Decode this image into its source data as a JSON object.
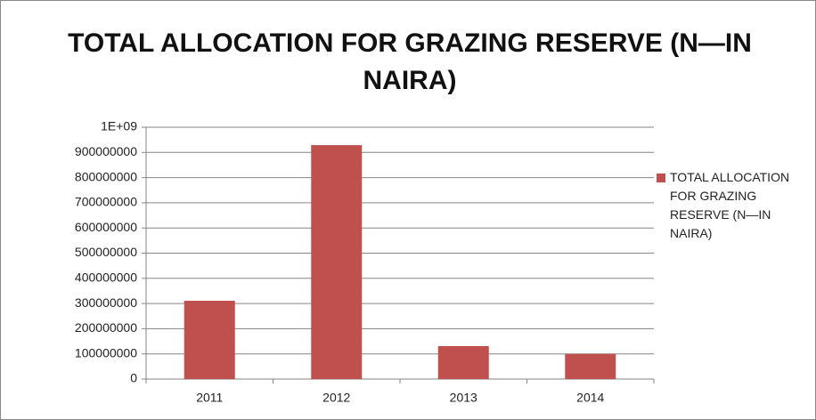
{
  "chart_data": {
    "type": "bar",
    "title": "TOTAL ALLOCATION FOR GRAZING RESERVE (N—IN NAIRA)",
    "categories": [
      "2011",
      "2012",
      "2013",
      "2014"
    ],
    "series": [
      {
        "name": "TOTAL ALLOCATION FOR GRAZING RESERVE (N—IN NAIRA)",
        "color": "#c0504d",
        "values": [
          311000000,
          929000000,
          131000000,
          100000000
        ]
      }
    ],
    "ylim": [
      0,
      1000000000
    ],
    "yticks": [
      0,
      100000000,
      200000000,
      300000000,
      400000000,
      500000000,
      600000000,
      700000000,
      800000000,
      900000000,
      {
        "value": 1000000000,
        "label": "1E+09"
      }
    ],
    "grid": true,
    "legend": "right"
  }
}
